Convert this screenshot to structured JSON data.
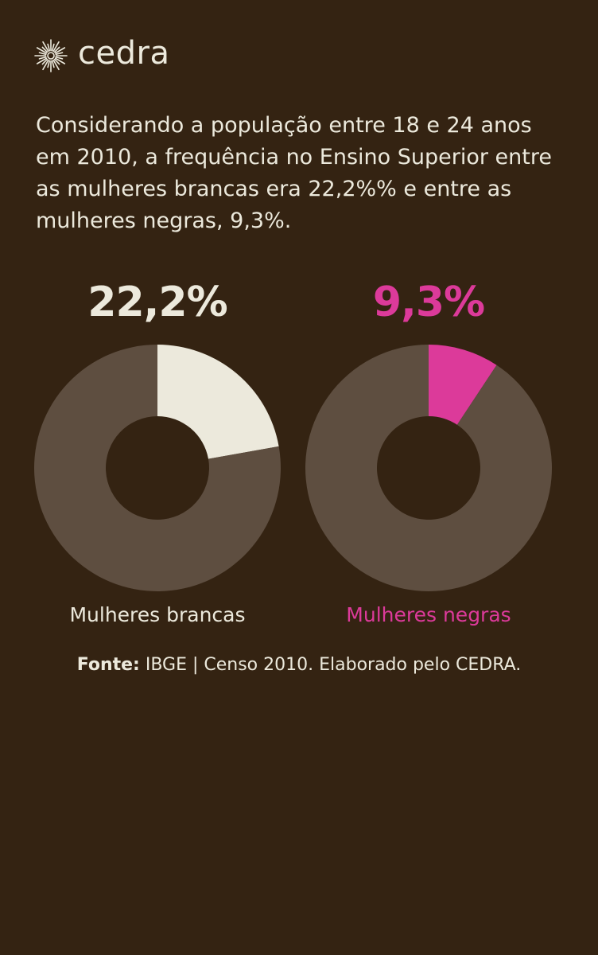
{
  "brand": {
    "name": "cedra",
    "icon": "sunburst-logo-icon"
  },
  "description": "Considerando a população entre 18 e 24 anos em 2010, a frequência no Ensino Superior entre as mulheres brancas era 22,2%% e entre as mulheres negras, 9,3%.",
  "colors": {
    "background": "#342312",
    "ring": "#5e4e40",
    "white_women": "#ece9dc",
    "black_women": "#dc3a9a"
  },
  "chart_data": [
    {
      "type": "pie",
      "donut": true,
      "value_label": "22,2%",
      "label": "Mulheres brancas",
      "slices": [
        {
          "label": "Mulheres brancas",
          "value": 22.2,
          "color": "#ece9dc"
        },
        {
          "value": 77.8,
          "color": "#5e4e40"
        }
      ]
    },
    {
      "type": "pie",
      "donut": true,
      "value_label": "9,3%",
      "label": "Mulheres negras",
      "slices": [
        {
          "label": "Mulheres negras",
          "value": 9.3,
          "color": "#dc3a9a"
        },
        {
          "value": 90.7,
          "color": "#5e4e40"
        }
      ]
    }
  ],
  "source": {
    "prefix": "Fonte:",
    "text": " IBGE | Censo 2010. Elaborado pelo CEDRA."
  }
}
